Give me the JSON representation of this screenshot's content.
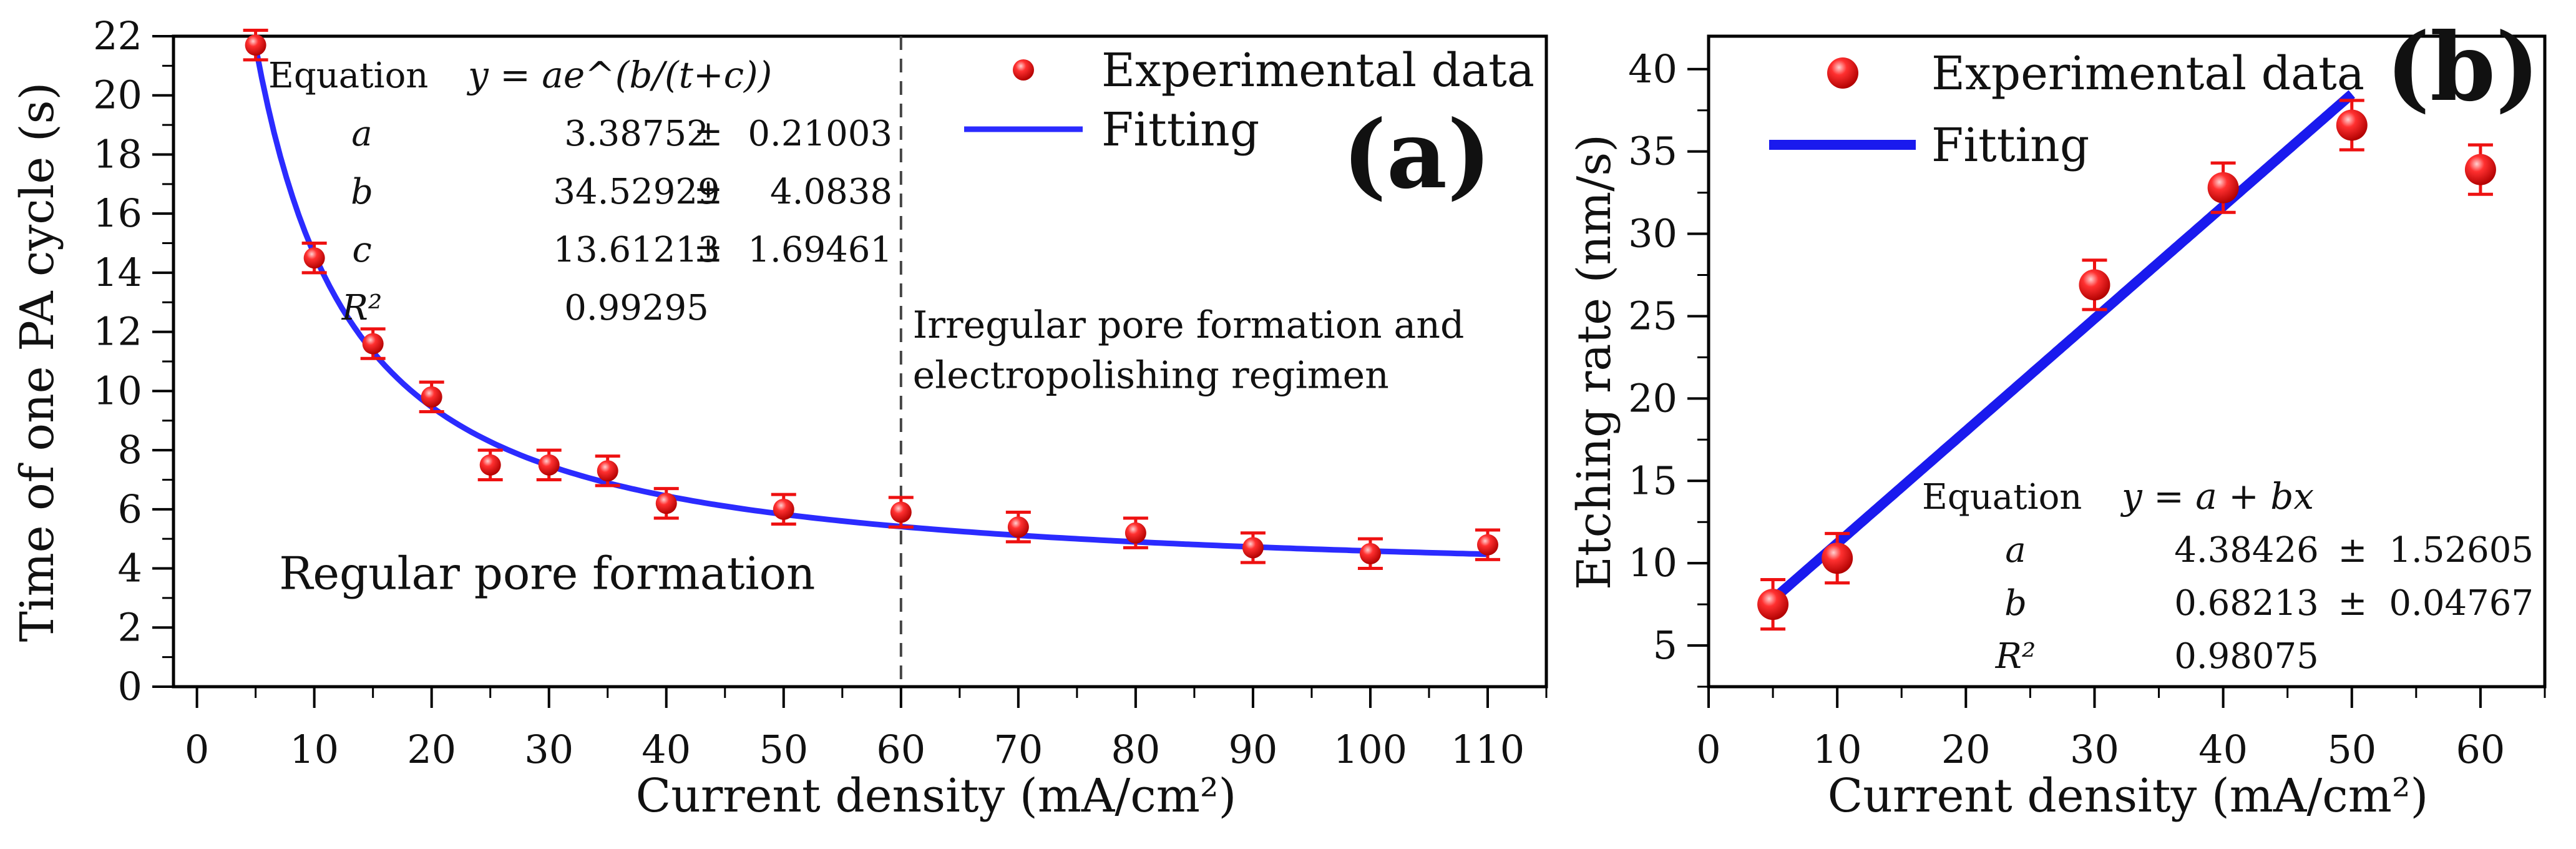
{
  "chart_data": [
    {
      "type": "scatter",
      "panel_label": "(a)",
      "xlabel": "Current density (mA/cm²)",
      "ylabel": "Time of one PA cycle (s)",
      "xlim": [
        -2,
        115
      ],
      "ylim": [
        0,
        22
      ],
      "xticks": [
        0,
        10,
        20,
        30,
        40,
        50,
        60,
        70,
        80,
        90,
        100,
        110
      ],
      "yticks": [
        0,
        2,
        4,
        6,
        8,
        10,
        12,
        14,
        16,
        18,
        20,
        22
      ],
      "legend_position": "top-right",
      "series": [
        {
          "name": "Experimental data",
          "kind": "points-with-errorbars",
          "color": "#ee1111",
          "x": [
            5,
            10,
            15,
            20,
            25,
            30,
            35,
            40,
            50,
            60,
            70,
            80,
            90,
            100,
            110
          ],
          "y": [
            21.7,
            14.5,
            11.6,
            9.8,
            7.5,
            7.5,
            7.3,
            6.2,
            6.0,
            5.9,
            5.4,
            5.2,
            4.7,
            4.5,
            4.8
          ],
          "error": [
            0.5,
            0.5,
            0.5,
            0.5,
            0.5,
            0.5,
            0.5,
            0.5,
            0.5,
            0.5,
            0.5,
            0.5,
            0.5,
            0.5,
            0.5
          ]
        },
        {
          "name": "Fitting",
          "kind": "line",
          "color": "#2b2bff",
          "model": "y = a·exp(b/(x+c))",
          "params": {
            "a": 3.38752,
            "b": 34.52929,
            "c": 13.61213
          },
          "x_range": [
            5,
            110
          ]
        }
      ],
      "fit_table": {
        "header_label": "Equation",
        "header_formula": "y = ae^(b/(t+c))",
        "rows": [
          {
            "name": "a",
            "value": "3.38752",
            "pm": "±",
            "error": "0.21003"
          },
          {
            "name": "b",
            "value": "34.52929",
            "pm": "±",
            "error": "4.0838"
          },
          {
            "name": "c",
            "value": "13.61213",
            "pm": "±",
            "error": "1.69461"
          },
          {
            "name": "R²",
            "value": "0.99295",
            "pm": "",
            "error": ""
          }
        ]
      },
      "divider_x": 60,
      "annotations": [
        {
          "text": "Irregular pore formation and",
          "x": 61,
          "y": 11.8,
          "size": "small"
        },
        {
          "text": "electropolishing regimen",
          "x": 61,
          "y": 10.1,
          "size": "small"
        },
        {
          "text": "Regular pore formation",
          "x": 7,
          "y": 3.3,
          "size": "large"
        }
      ]
    },
    {
      "type": "scatter",
      "panel_label": "(b)",
      "xlabel": "Current density (mA/cm²)",
      "ylabel": "Etching rate (nm/s)",
      "xlim": [
        0,
        65
      ],
      "ylim": [
        2.5,
        42
      ],
      "xticks": [
        0,
        10,
        20,
        30,
        40,
        50,
        60
      ],
      "yticks": [
        5,
        10,
        15,
        20,
        25,
        30,
        35,
        40
      ],
      "legend_position": "top-left",
      "series": [
        {
          "name": "Experimental data",
          "kind": "points-with-errorbars",
          "color": "#ee1111",
          "x": [
            5,
            10,
            30,
            40,
            50,
            60
          ],
          "y": [
            7.5,
            10.3,
            26.9,
            32.8,
            36.6,
            33.9
          ],
          "error": [
            1.5,
            1.5,
            1.5,
            1.5,
            1.5,
            1.5
          ]
        },
        {
          "name": "Fitting",
          "kind": "line",
          "color": "#1a1aee",
          "model": "y = a + b·x",
          "params": {
            "a": 4.38426,
            "b": 0.68213
          },
          "x_range": [
            5,
            50
          ]
        }
      ],
      "fit_table": {
        "header_label": "Equation",
        "header_formula": "y = a + bx",
        "rows": [
          {
            "name": "a",
            "value": "4.38426",
            "pm": "±",
            "error": "1.52605"
          },
          {
            "name": "b",
            "value": "0.68213",
            "pm": "±",
            "error": "0.04767"
          },
          {
            "name": "R²",
            "value": "0.98075",
            "pm": "",
            "error": ""
          }
        ]
      }
    }
  ]
}
